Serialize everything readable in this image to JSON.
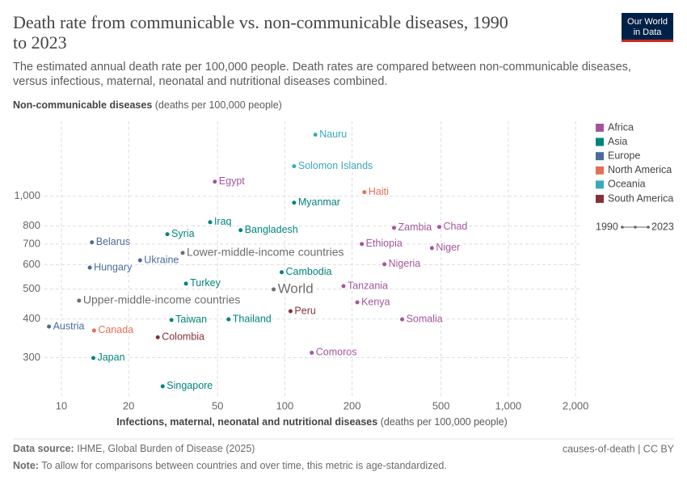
{
  "chart_data": {
    "type": "scatter",
    "title": [
      "Death rate from communicable vs. non-communicable diseases, 1990",
      "to 2023"
    ],
    "subtitle": [
      "The estimated annual death rate per 100,000 people. Death rates are compared between non-communicable diseases,",
      "versus infectious, maternal, neonatal and nutritional diseases combined."
    ],
    "y_label": {
      "bold": "Non-communicable diseases",
      "rest": "(deaths per 100,000 people)"
    },
    "x_label": {
      "bold": "Infections, maternal, neonatal and nutritional diseases",
      "rest": "(deaths per 100,000 people)"
    },
    "log_x": true,
    "log_y": true,
    "grid": true,
    "xlim": [
      8.4,
      2100
    ],
    "xticks": [
      10,
      20,
      50,
      100,
      200,
      500,
      {
        "value": 1000,
        "label": "1,000"
      },
      {
        "value": 2000,
        "label": "2,000"
      }
    ],
    "ylim": [
      225,
      1750
    ],
    "yticks": [
      300,
      400,
      500,
      600,
      700,
      800,
      {
        "value": 1000,
        "label": "1,000"
      }
    ],
    "legend": [
      {
        "name": "Africa",
        "color": "#a2559c"
      },
      {
        "name": "Asia",
        "color": "#00847e"
      },
      {
        "name": "Europe",
        "color": "#4c6a9c"
      },
      {
        "name": "North America",
        "color": "#e56e5a"
      },
      {
        "name": "Oceania",
        "color": "#38aaba"
      },
      {
        "name": "South America",
        "color": "#883039"
      }
    ],
    "time_legend": [
      "1990",
      "2023"
    ],
    "points": [
      {
        "name": "Nauru",
        "region": 4,
        "x": 137,
        "y": 1583
      },
      {
        "name": "Solomon Islands",
        "region": 4,
        "x": 110,
        "y": 1251
      },
      {
        "name": "Egypt",
        "region": 0,
        "x": 48.6,
        "y": 1115
      },
      {
        "name": "Haiti",
        "region": 3,
        "x": 227,
        "y": 1031
      },
      {
        "name": "Myanmar",
        "region": 1,
        "x": 110,
        "y": 953
      },
      {
        "name": "Iraq",
        "region": 1,
        "x": 46.3,
        "y": 824
      },
      {
        "name": "Zambia",
        "region": 0,
        "x": 308,
        "y": 790
      },
      {
        "name": "Chad",
        "region": 0,
        "x": 491,
        "y": 795
      },
      {
        "name": "Syria",
        "region": 1,
        "x": 29.8,
        "y": 753
      },
      {
        "name": "Bangladesh",
        "region": 1,
        "x": 63.4,
        "y": 776
      },
      {
        "name": "Belarus",
        "region": 2,
        "x": 13.7,
        "y": 709
      },
      {
        "name": "Ethiopia",
        "region": 0,
        "x": 221,
        "y": 700
      },
      {
        "name": "Niger",
        "region": 0,
        "x": 455,
        "y": 679
      },
      {
        "name": "Ukraine",
        "region": 2,
        "x": 22.5,
        "y": 620
      },
      {
        "name": "Lower-middle-income countries",
        "x": 34.9,
        "y": 655
      },
      {
        "name": "Hungary",
        "region": 2,
        "x": 13.4,
        "y": 587
      },
      {
        "name": "Nigeria",
        "region": 0,
        "x": 279,
        "y": 602
      },
      {
        "name": "Cambodia",
        "region": 1,
        "x": 96.8,
        "y": 567
      },
      {
        "name": "Turkey",
        "region": 1,
        "x": 36.1,
        "y": 521
      },
      {
        "name": "World",
        "x": 89.1,
        "y": 499
      },
      {
        "name": "Tanzania",
        "region": 0,
        "x": 183,
        "y": 511
      },
      {
        "name": "Upper-middle-income countries",
        "x": 12.0,
        "y": 459
      },
      {
        "name": "Kenya",
        "region": 0,
        "x": 211,
        "y": 453
      },
      {
        "name": "Peru",
        "region": 5,
        "x": 106,
        "y": 424
      },
      {
        "name": "Somalia",
        "region": 0,
        "x": 335,
        "y": 399
      },
      {
        "name": "Austria",
        "region": 2,
        "x": 8.8,
        "y": 378
      },
      {
        "name": "Taiwan",
        "region": 1,
        "x": 31.1,
        "y": 397
      },
      {
        "name": "Thailand",
        "region": 1,
        "x": 56.0,
        "y": 399
      },
      {
        "name": "Canada",
        "region": 3,
        "x": 14.0,
        "y": 367
      },
      {
        "name": "Colombia",
        "region": 5,
        "x": 27.0,
        "y": 349
      },
      {
        "name": "Comoros",
        "region": 0,
        "x": 132,
        "y": 311
      },
      {
        "name": "Japan",
        "region": 1,
        "x": 13.9,
        "y": 299
      },
      {
        "name": "Singapore",
        "region": 1,
        "x": 28.4,
        "y": 242
      }
    ]
  },
  "logo": [
    "Our World",
    "in Data"
  ],
  "footer": {
    "source_label": "Data source:",
    "source": "IHME, Global Burden of Disease (2025)",
    "license": "causes-of-death | CC BY",
    "note_label": "Note:",
    "note": "To allow for comparisons between countries and over time, this metric is age-standardized."
  }
}
